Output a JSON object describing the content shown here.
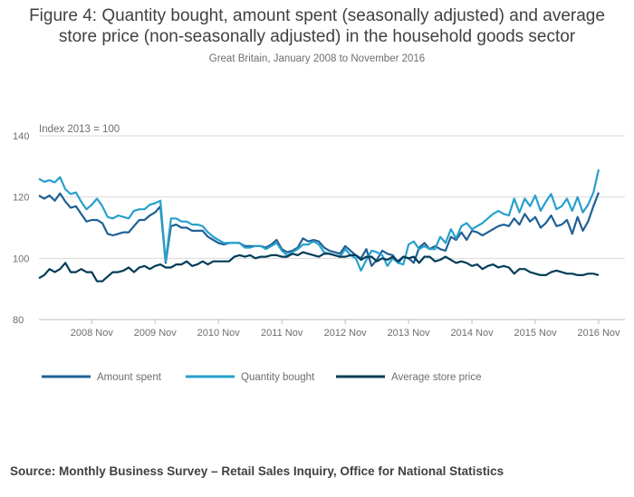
{
  "title_line1": "Figure 4: Quantity bought, amount spent (seasonally adjusted) and average",
  "title_line2": "store price (non-seasonally adjusted) in the household goods sector",
  "subtitle": "Great Britain, January 2008 to November 2016",
  "source": "Source: Monthly Business Survey – Retail Sales Inquiry, Office for National Statistics",
  "chart_data": {
    "type": "line",
    "ylabel": "Index 2013 = 100",
    "ylim": [
      80,
      140
    ],
    "yticks": [
      80,
      100,
      120,
      140
    ],
    "x_start": "Jan 2008",
    "x_end": "Nov 2016",
    "x_tick_labels": [
      "2008 Nov",
      "2009 Nov",
      "2010 Nov",
      "2011 Nov",
      "2012 Nov",
      "2013 Nov",
      "2014 Nov",
      "2015 Nov",
      "2016 Nov"
    ],
    "grid": "horizontal",
    "legend_position": "bottom",
    "series": [
      {
        "name": "Amount spent",
        "color": "#206095",
        "values": [
          120.5,
          119.5,
          120.5,
          118.8,
          121.2,
          118.5,
          116.5,
          117.0,
          114.5,
          112.0,
          112.5,
          112.5,
          111.5,
          108.0,
          107.5,
          108.0,
          108.5,
          108.5,
          110.5,
          112.5,
          112.5,
          114.0,
          115.0,
          117.0,
          98.5,
          110.5,
          111.0,
          110.0,
          110.0,
          109.0,
          109.0,
          109.0,
          107.0,
          106.0,
          105.0,
          104.5,
          105.0,
          105.0,
          105.0,
          104.0,
          104.0,
          104.0,
          104.0,
          103.5,
          104.5,
          106.0,
          103.0,
          102.0,
          102.5,
          103.5,
          106.5,
          105.5,
          106.0,
          105.5,
          103.5,
          102.5,
          102.0,
          101.5,
          104.0,
          102.5,
          101.0,
          100.0,
          103.0,
          97.5,
          99.5,
          102.5,
          101.5,
          101.0,
          98.5,
          100.5,
          100.0,
          98.5,
          103.5,
          105.0,
          103.0,
          104.0,
          103.0,
          102.5,
          107.0,
          106.0,
          108.5,
          106.0,
          109.0,
          108.5,
          107.5,
          108.5,
          109.5,
          110.5,
          111.0,
          110.5,
          113.0,
          111.0,
          114.5,
          112.0,
          113.5,
          110.0,
          111.5,
          114.0,
          110.5,
          111.0,
          112.5,
          108.0,
          113.5,
          109.0,
          112.0,
          117.0,
          121.5
        ]
      },
      {
        "name": "Quantity bought",
        "color": "#27a0cc",
        "values": [
          126.0,
          125.0,
          125.5,
          124.8,
          126.5,
          122.5,
          121.0,
          121.5,
          118.5,
          116.0,
          117.5,
          119.5,
          117.0,
          113.5,
          113.0,
          114.0,
          113.5,
          113.0,
          115.5,
          116.0,
          116.0,
          117.5,
          118.0,
          118.8,
          99.0,
          113.0,
          113.0,
          112.0,
          112.0,
          111.0,
          111.0,
          110.5,
          108.5,
          107.0,
          106.0,
          105.0,
          105.0,
          105.0,
          105.0,
          103.5,
          103.5,
          104.0,
          104.0,
          103.0,
          104.0,
          105.0,
          102.5,
          101.0,
          102.0,
          103.0,
          104.5,
          104.5,
          105.5,
          104.5,
          102.0,
          101.5,
          101.0,
          100.5,
          103.0,
          101.0,
          100.0,
          96.0,
          99.5,
          102.5,
          102.0,
          101.0,
          97.5,
          100.0,
          98.5,
          98.0,
          104.5,
          105.5,
          103.0,
          104.0,
          103.0,
          103.0,
          107.0,
          105.0,
          109.5,
          106.5,
          110.5,
          111.5,
          109.5,
          110.5,
          111.5,
          113.0,
          114.5,
          115.5,
          114.5,
          114.0,
          119.5,
          115.0,
          119.5,
          117.0,
          120.5,
          115.5,
          118.5,
          121.0,
          116.0,
          117.0,
          119.5,
          115.5,
          120.0,
          115.0,
          117.5,
          121.5,
          129.0
        ]
      },
      {
        "name": "Average store price",
        "color": "#003c57",
        "values": [
          93.5,
          94.5,
          96.5,
          95.5,
          96.5,
          98.5,
          95.5,
          95.5,
          96.5,
          95.5,
          95.5,
          92.5,
          92.5,
          94.0,
          95.5,
          95.5,
          96.0,
          97.0,
          95.5,
          97.0,
          97.5,
          96.5,
          97.5,
          98.0,
          97.0,
          97.0,
          98.0,
          98.0,
          99.0,
          97.5,
          98.0,
          99.0,
          98.0,
          99.0,
          99.0,
          99.0,
          99.0,
          100.5,
          101.0,
          100.5,
          101.0,
          100.0,
          100.5,
          100.5,
          101.0,
          101.0,
          100.5,
          100.5,
          101.5,
          101.0,
          102.0,
          101.5,
          101.0,
          100.5,
          101.5,
          101.5,
          101.0,
          100.5,
          100.5,
          101.0,
          101.0,
          99.5,
          100.5,
          100.5,
          99.0,
          100.0,
          99.5,
          100.5,
          99.0,
          100.5,
          100.0,
          100.5,
          98.5,
          100.5,
          100.5,
          99.0,
          99.5,
          100.5,
          99.5,
          98.5,
          99.0,
          98.5,
          97.5,
          98.0,
          96.5,
          97.5,
          98.0,
          97.0,
          97.5,
          97.0,
          95.0,
          96.5,
          96.5,
          95.5,
          95.0,
          94.5,
          94.5,
          95.5,
          96.0,
          95.5,
          95.0,
          95.0,
          94.5,
          94.5,
          95.0,
          95.0,
          94.5
        ]
      }
    ]
  }
}
